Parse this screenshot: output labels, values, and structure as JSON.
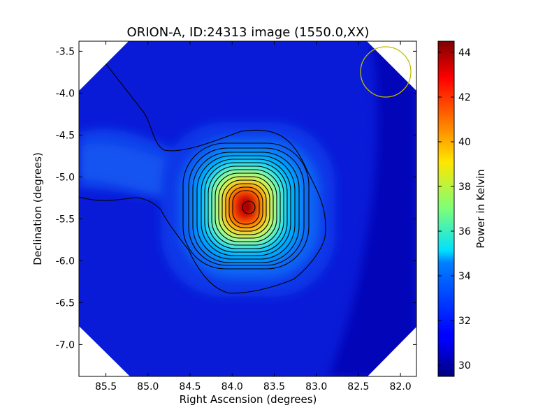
{
  "chart_data": {
    "type": "heatmap",
    "title": "ORION-A, ID:24313 image (1550.0,XX)",
    "xlabel": "Right Ascension (degrees)",
    "ylabel": "Declination (degrees)",
    "xlim": [
      85.82,
      81.81
    ],
    "ylim": [
      -7.38,
      -3.38
    ],
    "x_ticks": [
      "85.5",
      "85.0",
      "84.5",
      "84.0",
      "83.5",
      "83.0",
      "82.5",
      "82.0"
    ],
    "x_tick_values": [
      85.5,
      85.0,
      84.5,
      84.0,
      83.5,
      83.0,
      82.5,
      82.0
    ],
    "y_ticks": [
      "-3.5",
      "-4.0",
      "-4.5",
      "-5.0",
      "-5.5",
      "-6.0",
      "-6.5",
      "-7.0"
    ],
    "y_tick_values": [
      -3.5,
      -4.0,
      -4.5,
      -5.0,
      -5.5,
      -6.0,
      -6.5,
      -7.0
    ],
    "colorbar": {
      "label": "Power in Kelvin",
      "range": [
        29.5,
        44.5
      ],
      "ticks": [
        "30",
        "32",
        "34",
        "36",
        "38",
        "40",
        "42",
        "44"
      ],
      "tick_values": [
        30,
        32,
        34,
        36,
        38,
        40,
        42,
        44
      ],
      "colormap": "jet"
    },
    "peak": {
      "ra": 83.82,
      "dec": -5.38,
      "value": 44.3
    },
    "background_value": 30.0,
    "contour_levels": [
      30.3,
      30.8,
      32,
      33,
      34,
      35,
      36,
      37,
      38,
      39,
      40,
      41,
      42,
      43,
      44
    ],
    "beam_marker": {
      "ra": 82.17,
      "dec": -3.75,
      "color": "#bfbf00"
    }
  }
}
